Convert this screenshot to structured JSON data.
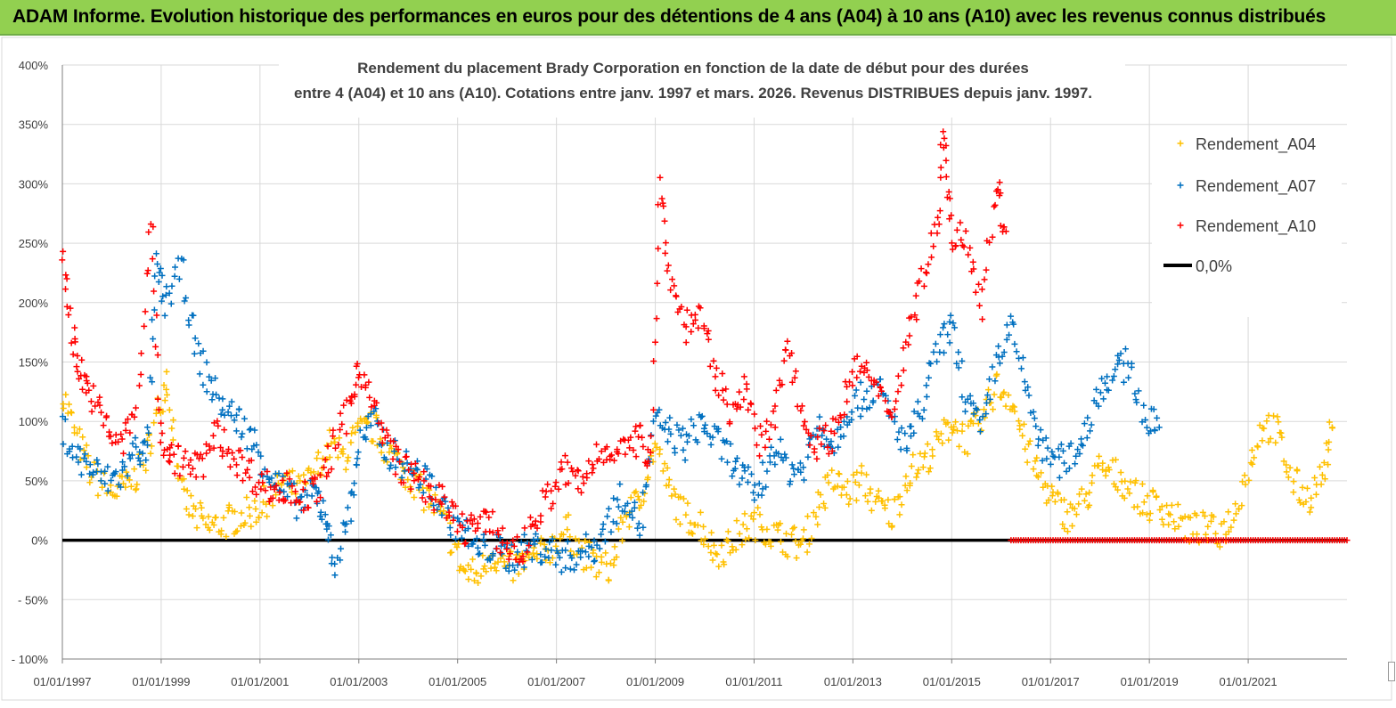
{
  "header": {
    "title": "ADAM Informe. Evolution historique des performances en euros pour des détentions de 4 ans (A04) à 10 ans (A10) avec les revenus connus distribués"
  },
  "chart_data": {
    "type": "scatter",
    "title_lines": [
      "Rendement du placement Brady Corporation en fonction de la date de début pour des durées",
      "entre 4 (A04) et 10 ans (A10).  Cotations entre janv. 1997 et mars. 2026. Revenus DISTRIBUES depuis janv. 1997."
    ],
    "xlabel": "",
    "ylabel": "",
    "xlim": [
      1997.0,
      2023.0
    ],
    "ylim": [
      -100,
      400
    ],
    "y_ticks": [
      -100,
      -50,
      0,
      50,
      100,
      150,
      200,
      250,
      300,
      350,
      400
    ],
    "y_tick_labels": [
      "- 100%",
      "- 50%",
      "0%",
      "50%",
      "100%",
      "150%",
      "200%",
      "250%",
      "300%",
      "350%",
      "400%"
    ],
    "x_ticks": [
      1997,
      1999,
      2001,
      2003,
      2005,
      2007,
      2009,
      2011,
      2013,
      2015,
      2017,
      2019,
      2021
    ],
    "x_tick_labels": [
      "01/01/1997",
      "01/01/1999",
      "01/01/2001",
      "01/01/2003",
      "01/01/2005",
      "01/01/2007",
      "01/01/2009",
      "01/01/2011",
      "01/01/2013",
      "01/01/2015",
      "01/01/2017",
      "01/01/2019",
      "01/01/2021"
    ],
    "grid": true,
    "legend_position": "top-right",
    "series": [
      {
        "name": "Rendement_A04",
        "color": "#ffc000",
        "marker": "+",
        "x": [
          1997.0,
          1997.3,
          1997.6,
          1998.0,
          1998.3,
          1998.6,
          1998.9,
          1999.1,
          1999.4,
          1999.7,
          2000.0,
          2000.3,
          2000.6,
          2000.9,
          2001.2,
          2001.5,
          2001.8,
          2002.1,
          2002.4,
          2002.7,
          2003.0,
          2003.3,
          2003.6,
          2003.9,
          2004.2,
          2004.5,
          2004.8,
          2005.1,
          2005.4,
          2005.7,
          2006.0,
          2006.3,
          2006.6,
          2006.9,
          2007.2,
          2007.5,
          2007.8,
          2008.1,
          2008.4,
          2008.7,
          2009.0,
          2009.3,
          2009.6,
          2009.9,
          2010.2,
          2010.5,
          2010.8,
          2011.1,
          2011.4,
          2011.7,
          2012.0,
          2012.3,
          2012.6,
          2012.9,
          2013.2,
          2013.5,
          2013.8,
          2014.1,
          2014.4,
          2014.7,
          2015.0,
          2015.3,
          2015.6,
          2015.9,
          2016.2,
          2016.5,
          2016.8,
          2017.1,
          2017.4,
          2017.7,
          2018.0,
          2018.3,
          2018.6,
          2018.9,
          2019.2,
          2019.5,
          2019.8,
          2020.1,
          2020.4,
          2020.7,
          2021.0,
          2021.3,
          2021.6,
          2021.9,
          2022.2,
          2022.5,
          2022.7
        ],
        "y": [
          125,
          85,
          55,
          40,
          45,
          60,
          100,
          140,
          40,
          20,
          10,
          15,
          20,
          25,
          35,
          50,
          40,
          55,
          80,
          70,
          90,
          95,
          75,
          60,
          45,
          30,
          10,
          -25,
          -30,
          -10,
          -25,
          -20,
          -15,
          -5,
          10,
          -10,
          -20,
          -25,
          20,
          35,
          80,
          40,
          20,
          15,
          -10,
          -5,
          10,
          15,
          5,
          0,
          -5,
          30,
          50,
          40,
          50,
          30,
          20,
          55,
          65,
          80,
          100,
          85,
          100,
          130,
          120,
          80,
          50,
          30,
          20,
          35,
          60,
          55,
          45,
          30,
          30,
          20,
          10,
          10,
          5,
          20,
          60,
          100,
          90,
          50,
          35,
          55,
          95
        ]
      },
      {
        "name": "Rendement_A07",
        "color": "#0070c0",
        "marker": "+",
        "x": [
          1997.0,
          1997.3,
          1997.6,
          1997.9,
          1998.2,
          1998.5,
          1998.7,
          1998.9,
          1999.1,
          1999.4,
          1999.7,
          2000.0,
          2000.3,
          2000.6,
          2000.9,
          2001.2,
          2001.5,
          2001.8,
          2002.1,
          2002.3,
          2002.5,
          2002.8,
          2003.0,
          2003.3,
          2003.6,
          2003.9,
          2004.2,
          2004.5,
          2004.8,
          2005.1,
          2005.4,
          2005.7,
          2006.0,
          2006.3,
          2006.6,
          2006.9,
          2007.2,
          2007.5,
          2007.8,
          2008.1,
          2008.4,
          2008.7,
          2009.0,
          2009.3,
          2009.6,
          2009.9,
          2010.2,
          2010.5,
          2010.8,
          2011.1,
          2011.4,
          2011.7,
          2012.0,
          2012.3,
          2012.6,
          2012.9,
          2013.2,
          2013.5,
          2013.8,
          2014.1,
          2014.4,
          2014.7,
          2015.0,
          2015.3,
          2015.6,
          2015.9,
          2016.2,
          2016.5,
          2016.8,
          2017.1,
          2017.4,
          2017.7,
          2018.0,
          2018.3,
          2018.6,
          2018.9,
          2019.2
        ],
        "y": [
          95,
          70,
          60,
          50,
          55,
          80,
          70,
          230,
          200,
          230,
          160,
          130,
          110,
          100,
          80,
          55,
          40,
          30,
          40,
          25,
          -20,
          20,
          80,
          100,
          75,
          65,
          55,
          45,
          20,
          10,
          -10,
          -5,
          -15,
          -10,
          -5,
          -10,
          -15,
          -10,
          -5,
          20,
          40,
          10,
          100,
          90,
          80,
          100,
          85,
          70,
          50,
          40,
          80,
          60,
          60,
          100,
          80,
          110,
          120,
          130,
          100,
          80,
          110,
          160,
          180,
          120,
          90,
          150,
          180,
          130,
          80,
          65,
          70,
          90,
          130,
          140,
          150,
          100,
          95
        ]
      },
      {
        "name": "Rendement_A10",
        "color": "#ff0000",
        "marker": "+",
        "x": [
          1997.0,
          1997.2,
          1997.4,
          1997.6,
          1997.9,
          1998.2,
          1998.5,
          1998.8,
          1999.0,
          1999.2,
          1999.5,
          1999.8,
          2000.1,
          2000.4,
          2000.7,
          2001.0,
          2001.3,
          2001.6,
          2001.9,
          2002.2,
          2002.5,
          2002.8,
          2003.0,
          2003.3,
          2003.6,
          2003.9,
          2004.2,
          2004.5,
          2004.8,
          2005.1,
          2005.4,
          2005.7,
          2006.0,
          2006.3,
          2006.6,
          2006.9,
          2007.2,
          2007.5,
          2007.8,
          2008.1,
          2008.4,
          2008.7,
          2008.9,
          2009.1,
          2009.3,
          2009.6,
          2009.9,
          2010.2,
          2010.5,
          2010.8,
          2011.1,
          2011.4,
          2011.7,
          2012.0,
          2012.3,
          2012.6,
          2012.9,
          2013.2,
          2013.5,
          2013.8,
          2014.1,
          2014.4,
          2014.7,
          2014.85,
          2015.0,
          2015.3,
          2015.6,
          2015.9,
          2016.1
        ],
        "y": [
          245,
          170,
          140,
          120,
          95,
          80,
          110,
          270,
          90,
          70,
          65,
          60,
          90,
          75,
          60,
          50,
          40,
          45,
          35,
          45,
          80,
          110,
          150,
          110,
          80,
          60,
          50,
          40,
          25,
          10,
          15,
          10,
          -5,
          -10,
          20,
          40,
          60,
          45,
          70,
          80,
          75,
          85,
          70,
          300,
          220,
          180,
          190,
          140,
          110,
          130,
          80,
          100,
          170,
          100,
          80,
          90,
          130,
          150,
          120,
          110,
          170,
          220,
          260,
          350,
          250,
          260,
          200,
          300,
          260
        ]
      }
    ],
    "zero_line": {
      "name": "0,0%",
      "color": "#000000",
      "value": 0
    },
    "tail_zero_segment": {
      "x_start": 2016.2,
      "x_end": 2023.0,
      "value": 0,
      "color": "#ff0000"
    }
  }
}
